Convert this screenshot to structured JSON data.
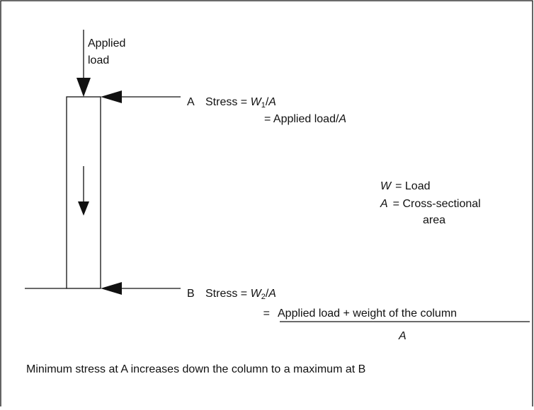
{
  "diagram": {
    "applied_load": [
      "Applied",
      "load"
    ],
    "point_a": "A",
    "point_b": "B",
    "stress_a": {
      "label": "Stress = ",
      "symbol": "W",
      "subscript": "1",
      "operator": "/",
      "divisor": "A"
    },
    "stress_a_line2": {
      "text": "= Applied load/",
      "divisor": "A"
    },
    "legend": [
      {
        "symbol": "W",
        "definition": [
          "= Load"
        ]
      },
      {
        "symbol": "A",
        "definition": [
          "= Cross-sectional",
          "area"
        ]
      }
    ],
    "stress_b": {
      "label": "Stress = ",
      "symbol": "W",
      "subscript": "2",
      "operator": "/",
      "divisor": "A"
    },
    "stress_b_line2": {
      "equals": "=",
      "numerator": "Applied load + weight of the column",
      "denominator": "A"
    },
    "caption": "Minimum stress at A increases down the column to a maximum at B"
  }
}
